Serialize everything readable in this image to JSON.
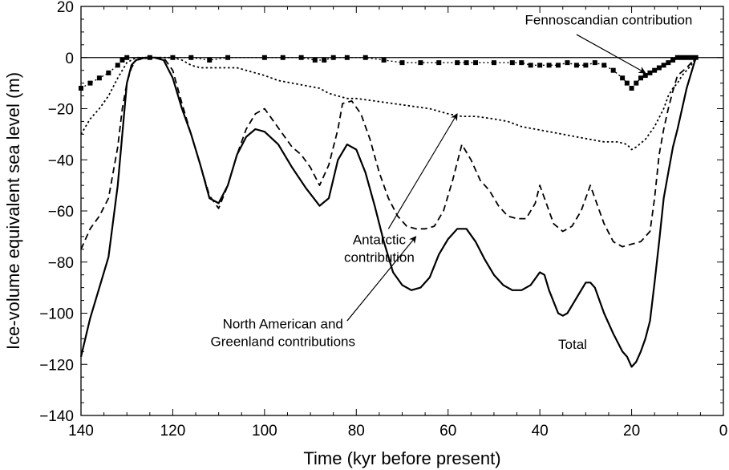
{
  "chart_data": {
    "type": "line",
    "xlabel": "Time (kyr before present)",
    "ylabel": "Ice-volume equivalent sea level (m)",
    "xlim": [
      140,
      0
    ],
    "ylim": [
      -140,
      20
    ],
    "x_ticks": [
      140,
      120,
      100,
      80,
      60,
      40,
      20,
      0
    ],
    "y_ticks": [
      20,
      0,
      -20,
      -40,
      -60,
      -80,
      -100,
      -120,
      -140
    ],
    "grid": false,
    "series": [
      {
        "id": "total",
        "style": "solid",
        "points": [
          [
            140,
            -117
          ],
          [
            138,
            -102
          ],
          [
            136,
            -90
          ],
          [
            134,
            -78
          ],
          [
            132,
            -50
          ],
          [
            130,
            -10
          ],
          [
            129,
            -3
          ],
          [
            128,
            -1
          ],
          [
            126,
            0
          ],
          [
            124,
            0
          ],
          [
            122,
            -1
          ],
          [
            120,
            -8
          ],
          [
            118,
            -20
          ],
          [
            116,
            -30
          ],
          [
            114,
            -42
          ],
          [
            112,
            -55
          ],
          [
            110,
            -57
          ],
          [
            108,
            -50
          ],
          [
            106,
            -38
          ],
          [
            104,
            -31
          ],
          [
            102,
            -28
          ],
          [
            100,
            -29
          ],
          [
            97,
            -34
          ],
          [
            94,
            -43
          ],
          [
            91,
            -51
          ],
          [
            88,
            -58
          ],
          [
            86,
            -55
          ],
          [
            84,
            -40
          ],
          [
            82,
            -34
          ],
          [
            80,
            -36
          ],
          [
            78,
            -45
          ],
          [
            76,
            -58
          ],
          [
            74,
            -72
          ],
          [
            72,
            -84
          ],
          [
            70,
            -89
          ],
          [
            68,
            -91
          ],
          [
            66,
            -90
          ],
          [
            64,
            -86
          ],
          [
            62,
            -77
          ],
          [
            60,
            -71
          ],
          [
            58,
            -67
          ],
          [
            56,
            -67
          ],
          [
            54,
            -72
          ],
          [
            52,
            -79
          ],
          [
            50,
            -85
          ],
          [
            48,
            -89
          ],
          [
            46,
            -91
          ],
          [
            44,
            -91
          ],
          [
            42,
            -89
          ],
          [
            40,
            -84
          ],
          [
            39,
            -85
          ],
          [
            38,
            -91
          ],
          [
            36,
            -100
          ],
          [
            35,
            -101
          ],
          [
            34,
            -100
          ],
          [
            32,
            -94
          ],
          [
            30,
            -88
          ],
          [
            29,
            -88
          ],
          [
            28,
            -90
          ],
          [
            26,
            -100
          ],
          [
            24,
            -108
          ],
          [
            22,
            -115
          ],
          [
            21,
            -117
          ],
          [
            20,
            -121
          ],
          [
            19,
            -119
          ],
          [
            18,
            -115
          ],
          [
            17,
            -110
          ],
          [
            16,
            -103
          ],
          [
            15,
            -88
          ],
          [
            14,
            -72
          ],
          [
            13,
            -55
          ],
          [
            12,
            -45
          ],
          [
            11,
            -35
          ],
          [
            10,
            -28
          ],
          [
            9,
            -20
          ],
          [
            8,
            -12
          ],
          [
            7,
            -6
          ],
          [
            6,
            0
          ]
        ]
      },
      {
        "id": "north-american-greenland",
        "style": "dashed",
        "points": [
          [
            140,
            -75
          ],
          [
            138,
            -67
          ],
          [
            136,
            -62
          ],
          [
            134,
            -55
          ],
          [
            132,
            -35
          ],
          [
            131,
            -20
          ],
          [
            130,
            -10
          ],
          [
            129,
            -4
          ],
          [
            128,
            -1
          ],
          [
            125,
            0
          ],
          [
            122,
            0
          ],
          [
            120,
            -5
          ],
          [
            118,
            -18
          ],
          [
            116,
            -30
          ],
          [
            114,
            -42
          ],
          [
            112,
            -54
          ],
          [
            110,
            -59
          ],
          [
            108,
            -50
          ],
          [
            106,
            -38
          ],
          [
            104,
            -28
          ],
          [
            102,
            -22
          ],
          [
            100,
            -20
          ],
          [
            98,
            -25
          ],
          [
            96,
            -30
          ],
          [
            94,
            -35
          ],
          [
            92,
            -38
          ],
          [
            90,
            -43
          ],
          [
            88,
            -50
          ],
          [
            86,
            -42
          ],
          [
            84,
            -28
          ],
          [
            83,
            -18
          ],
          [
            81,
            -17
          ],
          [
            79,
            -22
          ],
          [
            77,
            -32
          ],
          [
            75,
            -45
          ],
          [
            73,
            -55
          ],
          [
            71,
            -62
          ],
          [
            69,
            -66
          ],
          [
            67,
            -67
          ],
          [
            65,
            -67
          ],
          [
            63,
            -66
          ],
          [
            61,
            -60
          ],
          [
            59,
            -48
          ],
          [
            57,
            -34
          ],
          [
            55,
            -40
          ],
          [
            53,
            -48
          ],
          [
            51,
            -52
          ],
          [
            49,
            -58
          ],
          [
            47,
            -62
          ],
          [
            45,
            -63
          ],
          [
            43,
            -63
          ],
          [
            41,
            -57
          ],
          [
            40,
            -50
          ],
          [
            39,
            -55
          ],
          [
            37,
            -65
          ],
          [
            35,
            -68
          ],
          [
            33,
            -66
          ],
          [
            31,
            -60
          ],
          [
            29,
            -50
          ],
          [
            28,
            -55
          ],
          [
            26,
            -65
          ],
          [
            24,
            -72
          ],
          [
            22,
            -74
          ],
          [
            20,
            -73
          ],
          [
            18,
            -72
          ],
          [
            16,
            -68
          ],
          [
            15,
            -55
          ],
          [
            14,
            -38
          ],
          [
            13,
            -28
          ],
          [
            12,
            -20
          ],
          [
            11,
            -13
          ],
          [
            10,
            -7
          ],
          [
            8,
            -4
          ],
          [
            6,
            0
          ]
        ]
      },
      {
        "id": "antarctic",
        "style": "dotted",
        "points": [
          [
            140,
            -30
          ],
          [
            138,
            -24
          ],
          [
            136,
            -20
          ],
          [
            134,
            -15
          ],
          [
            132,
            -8
          ],
          [
            130,
            -2
          ],
          [
            128,
            0
          ],
          [
            122,
            0
          ],
          [
            120,
            0
          ],
          [
            118,
            -1
          ],
          [
            116,
            -3
          ],
          [
            114,
            -4
          ],
          [
            112,
            -4
          ],
          [
            110,
            -4
          ],
          [
            106,
            -4
          ],
          [
            104,
            -5
          ],
          [
            102,
            -6
          ],
          [
            100,
            -7
          ],
          [
            97,
            -9
          ],
          [
            94,
            -10
          ],
          [
            91,
            -11
          ],
          [
            88,
            -12
          ],
          [
            86,
            -14
          ],
          [
            84,
            -15
          ],
          [
            82,
            -16
          ],
          [
            80,
            -16
          ],
          [
            76,
            -17
          ],
          [
            72,
            -18
          ],
          [
            68,
            -19
          ],
          [
            64,
            -20
          ],
          [
            62,
            -21
          ],
          [
            60,
            -22
          ],
          [
            57,
            -23
          ],
          [
            54,
            -23
          ],
          [
            50,
            -24
          ],
          [
            47,
            -25
          ],
          [
            44,
            -27
          ],
          [
            41,
            -28
          ],
          [
            38,
            -29
          ],
          [
            35,
            -30
          ],
          [
            32,
            -31
          ],
          [
            29,
            -32
          ],
          [
            26,
            -33
          ],
          [
            23,
            -33
          ],
          [
            21,
            -34
          ],
          [
            20,
            -36
          ],
          [
            19,
            -35
          ],
          [
            17,
            -32
          ],
          [
            15,
            -27
          ],
          [
            13,
            -20
          ],
          [
            12,
            -15
          ],
          [
            11,
            -12
          ],
          [
            10,
            -10
          ],
          [
            9,
            -7
          ],
          [
            8,
            -5
          ],
          [
            7,
            -3
          ],
          [
            6,
            0
          ]
        ]
      },
      {
        "id": "fennoscandian",
        "style": "square-markers",
        "points": [
          [
            140,
            -12
          ],
          [
            138,
            -10
          ],
          [
            136,
            -8
          ],
          [
            134,
            -6
          ],
          [
            132,
            -3
          ],
          [
            131,
            -1
          ],
          [
            130,
            0
          ],
          [
            125,
            0
          ],
          [
            120,
            0
          ],
          [
            116,
            0
          ],
          [
            112,
            -1
          ],
          [
            108,
            0
          ],
          [
            100,
            0
          ],
          [
            96,
            0
          ],
          [
            92,
            0
          ],
          [
            89,
            -1
          ],
          [
            87,
            -1
          ],
          [
            85,
            0
          ],
          [
            82,
            0
          ],
          [
            78,
            0
          ],
          [
            74,
            -1
          ],
          [
            70,
            -2
          ],
          [
            66,
            -2
          ],
          [
            62,
            -2
          ],
          [
            58,
            -2
          ],
          [
            56,
            -2
          ],
          [
            54,
            -2
          ],
          [
            50,
            -2
          ],
          [
            46,
            -2
          ],
          [
            44,
            -2
          ],
          [
            42,
            -3
          ],
          [
            40,
            -3
          ],
          [
            38,
            -3
          ],
          [
            36,
            -3
          ],
          [
            34,
            -2
          ],
          [
            32,
            -3
          ],
          [
            30,
            -3
          ],
          [
            28,
            -2
          ],
          [
            26,
            -3
          ],
          [
            24,
            -5
          ],
          [
            22,
            -8
          ],
          [
            21,
            -10
          ],
          [
            20,
            -12
          ],
          [
            19,
            -10
          ],
          [
            18,
            -8
          ],
          [
            17,
            -7
          ],
          [
            16,
            -6
          ],
          [
            15,
            -5
          ],
          [
            14,
            -4
          ],
          [
            13,
            -3
          ],
          [
            12,
            -2
          ],
          [
            11,
            -1
          ],
          [
            10,
            0
          ],
          [
            9,
            0
          ],
          [
            8,
            0
          ],
          [
            7,
            0
          ],
          [
            6,
            0
          ]
        ]
      }
    ],
    "annotations": [
      {
        "id": "fennoscandian",
        "lines": [
          "Fennoscandian  contribution"
        ],
        "text_anchor": "middle",
        "text_at": [
          25,
          13
        ],
        "arrow_from": [
          32,
          9
        ],
        "arrow_to": [
          17,
          -6
        ]
      },
      {
        "id": "antarctic",
        "lines": [
          "Antarctic",
          "contribution"
        ],
        "text_anchor": "middle",
        "text_at": [
          75,
          -73
        ],
        "arrow_from": [
          73,
          -67
        ],
        "arrow_to": [
          58,
          -22
        ]
      },
      {
        "id": "north-american",
        "lines": [
          "North  American and",
          "Greenland  contributions"
        ],
        "text_anchor": "middle",
        "text_at": [
          96,
          -106
        ],
        "arrow_from": [
          82,
          -103
        ],
        "arrow_to": [
          67,
          -70
        ]
      },
      {
        "id": "total",
        "lines": [
          "Total"
        ],
        "text_anchor": "start",
        "text_at": [
          36,
          -114
        ],
        "arrow_from": null,
        "arrow_to": null
      }
    ]
  }
}
